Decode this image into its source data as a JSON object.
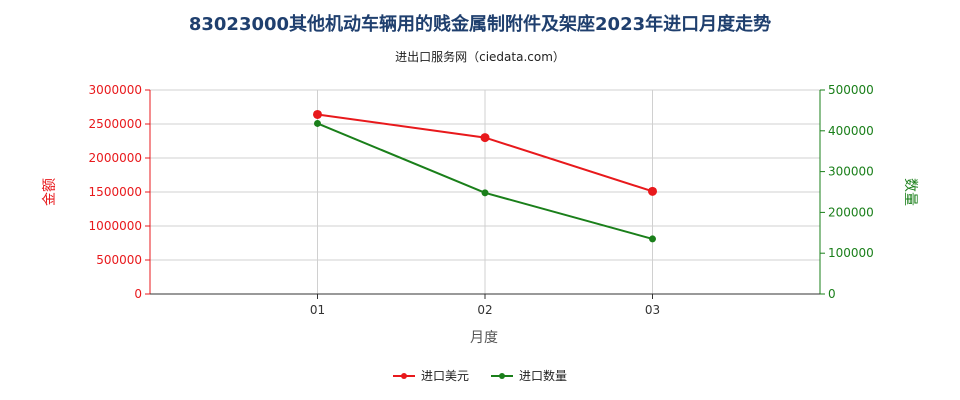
{
  "header": {
    "title": "83023000其他机动车辆用的贱金属制附件及架座2023年进口月度走势",
    "subtitle": "进出口服务网（ciedata.com）"
  },
  "chart_data": {
    "type": "line",
    "title": "83023000其他机动车辆用的贱金属制附件及架座2023年进口月度走势",
    "subtitle": "进出口服务网（ciedata.com）",
    "xlabel": "月度",
    "ylabel_left": "金额",
    "ylabel_right": "数量",
    "categories": [
      "01",
      "02",
      "03"
    ],
    "ylim_left": [
      0,
      3000000
    ],
    "yticks_left": [
      "0",
      "500000",
      "1000000",
      "1500000",
      "2000000",
      "2500000",
      "3000000"
    ],
    "ylim_right": [
      0,
      500000
    ],
    "yticks_right": [
      "0",
      "100000",
      "200000",
      "300000",
      "400000",
      "500000"
    ],
    "grid": true,
    "legend_position": "bottom",
    "series": [
      {
        "name": "进口美元",
        "axis": "left",
        "color": "#e8191c",
        "values": [
          2640000,
          2300000,
          1510000
        ]
      },
      {
        "name": "进口数量",
        "axis": "right",
        "color": "#1a7f1a",
        "values": [
          418000,
          248000,
          135000
        ]
      }
    ],
    "colors": {
      "left_axis": "#e8191c",
      "right_axis": "#1a7f1a",
      "grid": "#d0d0d0"
    }
  }
}
